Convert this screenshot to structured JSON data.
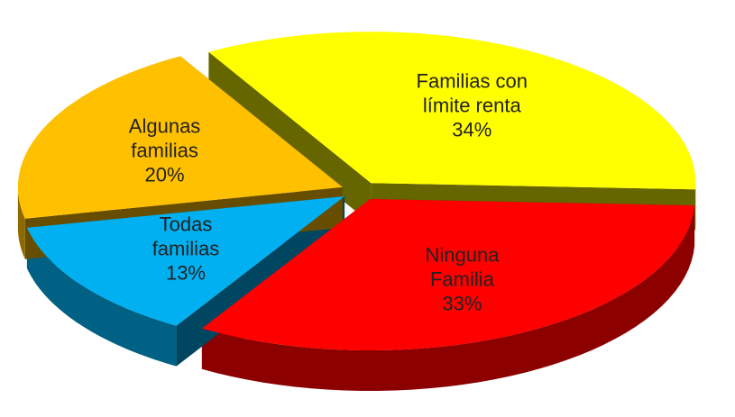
{
  "chart_data": {
    "type": "pie",
    "categories": [
      "Familias con\nlímite renta",
      "Ninguna\nFamilia",
      "Todas\nfamilias",
      "Algunas\nfamilias"
    ],
    "values": [
      34,
      33,
      13,
      20
    ],
    "value_labels": [
      "34%",
      "33%",
      "13%",
      "20%"
    ],
    "colors": [
      "#ffff00",
      "#ff0000",
      "#00b0f0",
      "#ffc000"
    ]
  }
}
